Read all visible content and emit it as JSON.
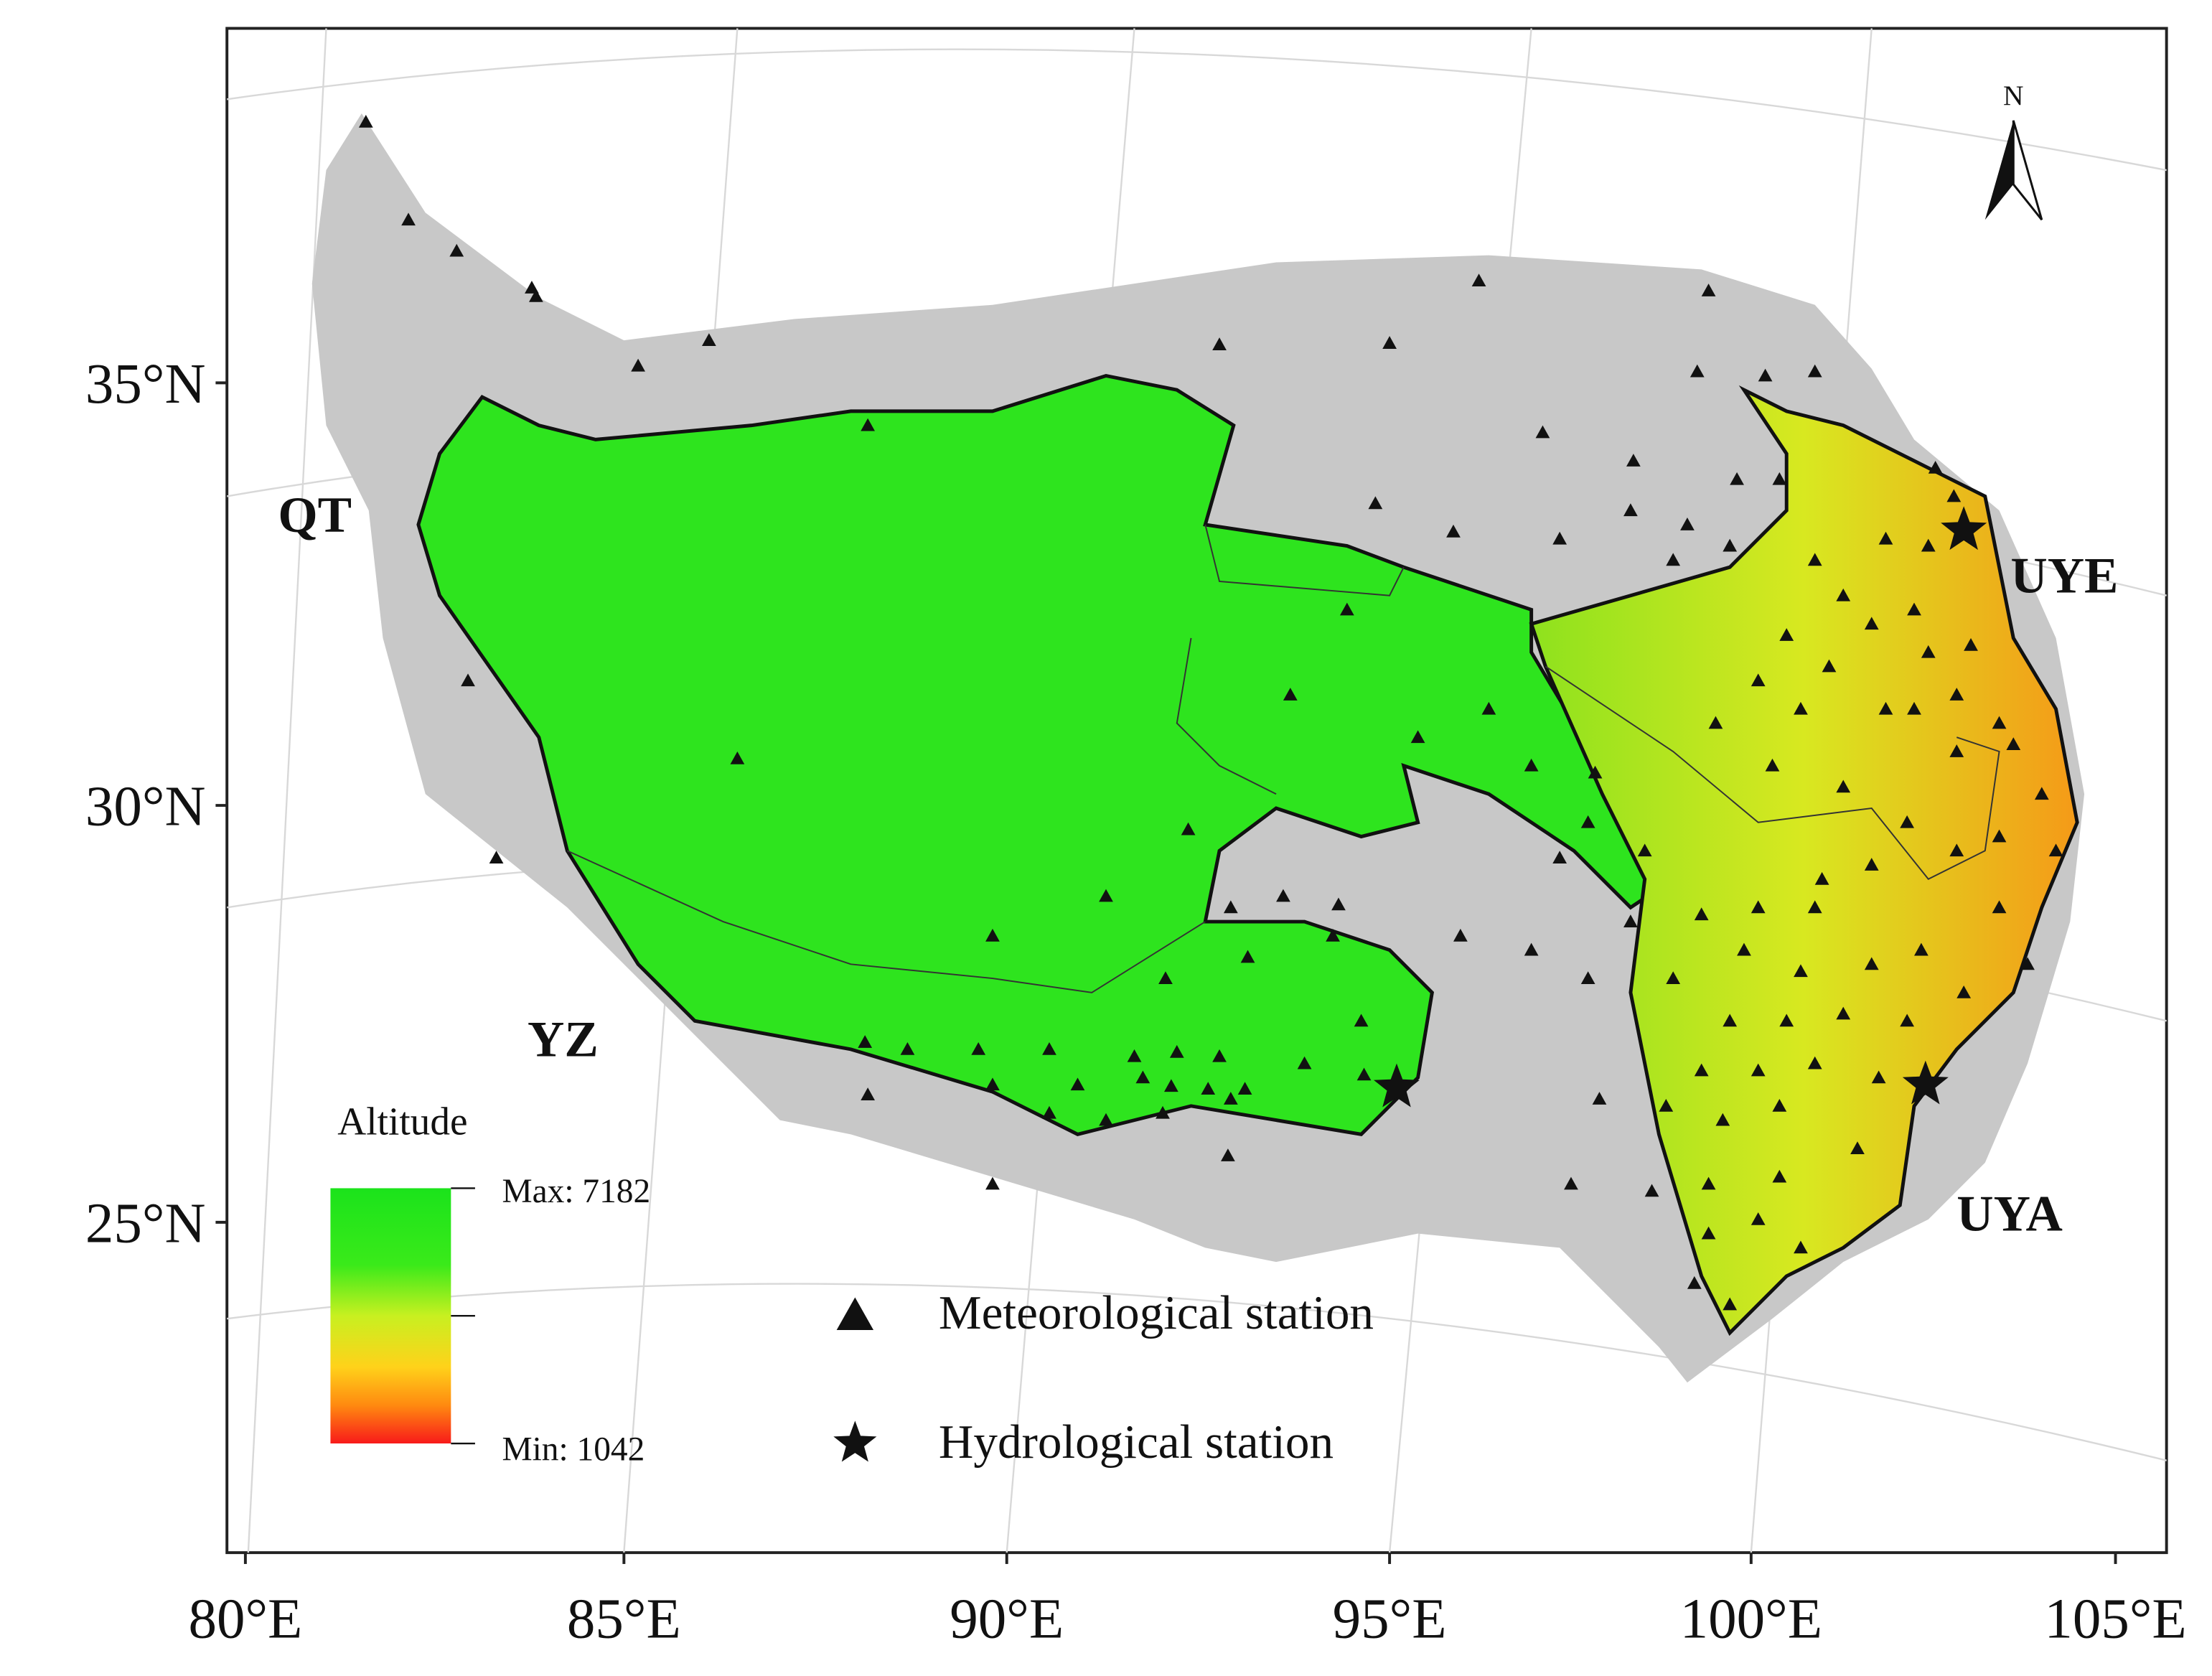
{
  "map": {
    "north_arrow": "N",
    "lat_labels": [
      "35°N",
      "30°N",
      "25°N"
    ],
    "lon_labels": [
      "80°E",
      "85°E",
      "90°E",
      "95°E",
      "100°E",
      "105°E"
    ],
    "regions": [
      "QT",
      "UYE",
      "YZ",
      "UYA"
    ],
    "legend": {
      "title": "Altitude",
      "max": "Max: 7182",
      "min": "Min: 1042"
    },
    "symbols": [
      "Meteorological station",
      "Hydrological station"
    ]
  }
}
